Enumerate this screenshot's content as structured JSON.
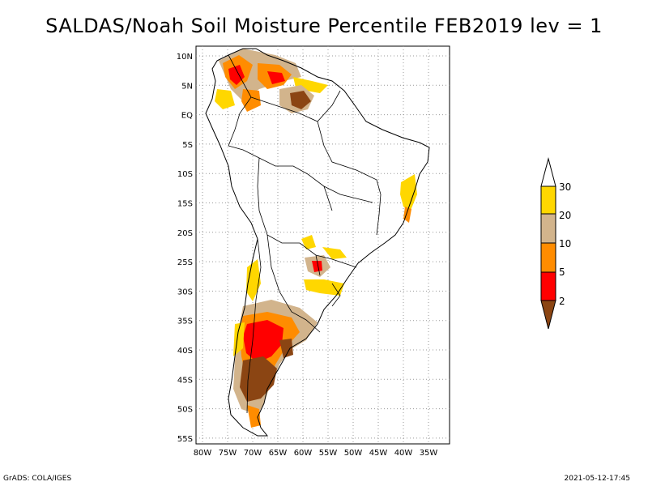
{
  "title": "SALDAS/Noah Soil Moisture Percentile FEB2019 lev = 1",
  "footer": {
    "left": "GrADS: COLA/IGES",
    "right": "2021-05-12-17:45"
  },
  "map": {
    "lat_labels": [
      "10N",
      "5N",
      "EQ",
      "5S",
      "10S",
      "15S",
      "20S",
      "25S",
      "30S",
      "35S",
      "40S",
      "45S",
      "50S",
      "55S"
    ],
    "lon_labels": [
      "80W",
      "75W",
      "70W",
      "65W",
      "60W",
      "55W",
      "50W",
      "45W",
      "40W",
      "35W"
    ],
    "lat_range": [
      -56,
      12
    ],
    "lon_range": [
      -81,
      -32
    ],
    "grid": true
  },
  "legend": {
    "labels": [
      "30",
      "20",
      "10",
      "5",
      "2"
    ],
    "colors": [
      "#ffffff",
      "#ffd700",
      "#d2b48c",
      "#ff8c00",
      "#ff0000",
      "#8b4513"
    ]
  },
  "colors": {
    "dark_brown": "#8b4513",
    "red": "#ff0000",
    "orange": "#ff8c00",
    "tan": "#d2b48c",
    "yellow": "#ffd700"
  }
}
